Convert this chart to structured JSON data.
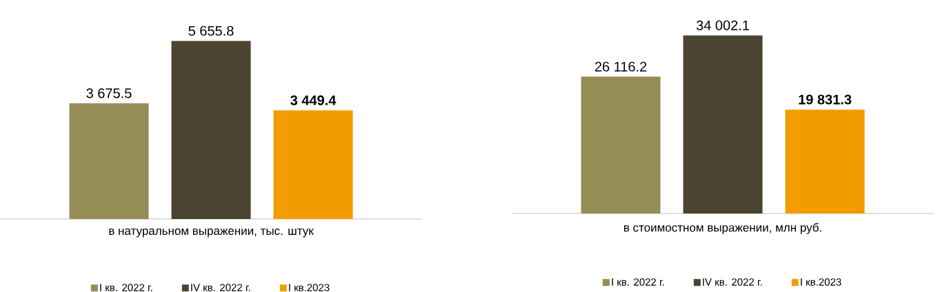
{
  "chart_data": [
    {
      "type": "bar",
      "xlabel": "в натуральном выражении, тыс. штук",
      "categories": [
        null
      ],
      "legend": "bottom",
      "series": [
        {
          "name": "I кв. 2022 г.",
          "color": "#968c55",
          "values": [
            3675.5
          ],
          "value_labels": [
            "3 675.5"
          ]
        },
        {
          "name": "IV кв. 2022 г.",
          "color": "#4a4430",
          "values": [
            5655.8
          ],
          "value_labels": [
            "5 655.8"
          ]
        },
        {
          "name": "I кв.2023",
          "color": "#f29c00",
          "values": [
            3449.4
          ],
          "value_labels": [
            "**3 449.4**"
          ]
        }
      ]
    },
    {
      "type": "bar",
      "xlabel": "в стоимостном выражении, млн руб.",
      "categories": [
        null
      ],
      "legend": "bottom",
      "series": [
        {
          "name": "I кв. 2022 г.",
          "color": "#968c55",
          "values": [
            26116.2
          ],
          "value_labels": [
            "26 116.2"
          ]
        },
        {
          "name": "IV кв. 2022 г.",
          "color": "#4a4430",
          "values": [
            34002.1
          ],
          "value_labels": [
            "34 002.1"
          ]
        },
        {
          "name": "I кв.2023",
          "color": "#f29c00",
          "values": [
            19831.3
          ],
          "value_labels": [
            "**19 831.3**"
          ]
        }
      ]
    }
  ]
}
